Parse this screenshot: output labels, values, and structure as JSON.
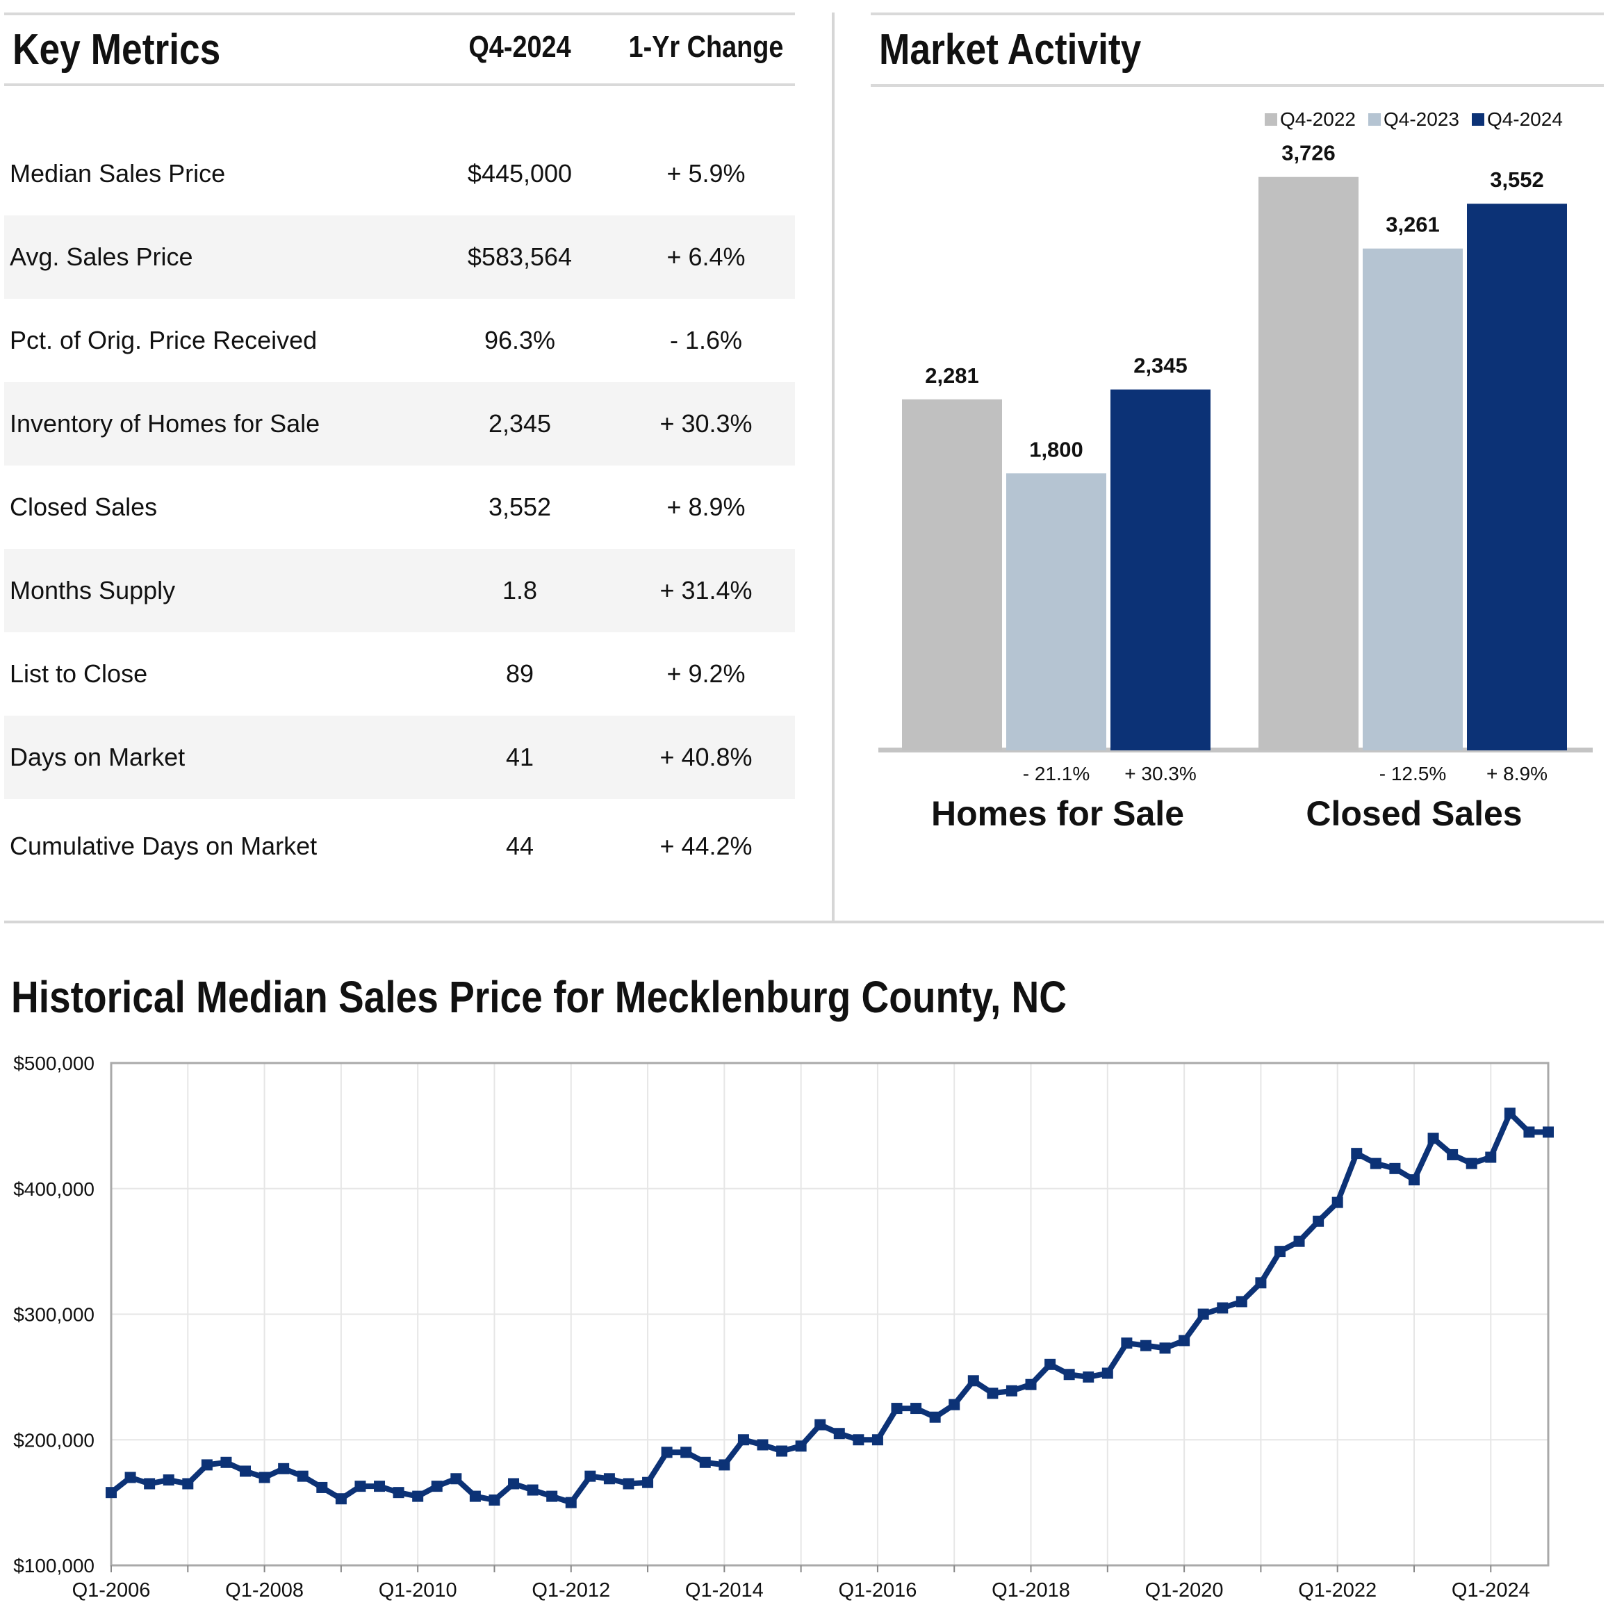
{
  "key_metrics": {
    "title": "Key Metrics",
    "col_period": "Q4-2024",
    "col_change": "1-Yr Change",
    "rows": [
      {
        "label": "Median Sales Price",
        "value": "$445,000",
        "change": "+ 5.9%"
      },
      {
        "label": "Avg. Sales Price",
        "value": "$583,564",
        "change": "+ 6.4%"
      },
      {
        "label": "Pct. of Orig. Price Received",
        "value": "96.3%",
        "change": "- 1.6%"
      },
      {
        "label": "Inventory of Homes for Sale",
        "value": "2,345",
        "change": "+ 30.3%"
      },
      {
        "label": "Closed Sales",
        "value": "3,552",
        "change": "+ 8.9%"
      },
      {
        "label": "Months Supply",
        "value": "1.8",
        "change": "+ 31.4%"
      },
      {
        "label": "List to Close",
        "value": "89",
        "change": "+ 9.2%"
      },
      {
        "label": "Days on Market",
        "value": "41",
        "change": "+ 40.8%"
      },
      {
        "label": "Cumulative Days on Market",
        "value": "44",
        "change": "+ 44.2%"
      }
    ]
  },
  "market_activity": {
    "title": "Market Activity"
  },
  "historical": {
    "title": "Historical Median Sales Price for Mecklenburg County, NC"
  },
  "colors": {
    "q4_2022": "#c0c0c0",
    "q4_2023": "#b5c4d2",
    "q4_2024": "#0c3276",
    "line": "#0c3276"
  },
  "chart_data": [
    {
      "type": "bar",
      "title": "Market Activity",
      "categories": [
        "Homes for Sale",
        "Closed Sales"
      ],
      "series": [
        {
          "name": "Q4-2022",
          "values": [
            2281,
            3726
          ],
          "labels": [
            "2,281",
            "3,726"
          ]
        },
        {
          "name": "Q4-2023",
          "values": [
            1800,
            3261
          ],
          "labels": [
            "1,800",
            "3,261"
          ]
        },
        {
          "name": "Q4-2024",
          "values": [
            2345,
            3552
          ],
          "labels": [
            "2,345",
            "3,552"
          ]
        }
      ],
      "changes": [
        {
          "vs_2022": "- 21.1%",
          "vs_2023": "+ 30.3%"
        },
        {
          "vs_2022": "- 12.5%",
          "vs_2023": "+ 8.9%"
        }
      ],
      "legend": "top-right",
      "ylim": [
        0,
        3800
      ]
    },
    {
      "type": "line",
      "title": "Historical Median Sales Price for Mecklenburg County, NC",
      "xlabel": "",
      "ylabel": "",
      "ylim": [
        100000,
        500000
      ],
      "yticks": [
        100000,
        200000,
        300000,
        400000,
        500000
      ],
      "ytick_labels": [
        "$100,000",
        "$200,000",
        "$300,000",
        "$400,000",
        "$500,000"
      ],
      "xtick_labels": [
        "Q1-2006",
        "Q1-2008",
        "Q1-2010",
        "Q1-2012",
        "Q1-2014",
        "Q1-2016",
        "Q1-2018",
        "Q1-2020",
        "Q1-2022",
        "Q1-2024"
      ],
      "start": "Q1-2006",
      "series": [
        {
          "name": "Median Sales Price",
          "values": [
            158000,
            170000,
            165000,
            168000,
            165000,
            180000,
            182000,
            175000,
            170000,
            177000,
            171000,
            162000,
            153000,
            163000,
            163000,
            158000,
            155000,
            163000,
            169000,
            155000,
            152000,
            165000,
            160000,
            155000,
            150000,
            171000,
            169000,
            165000,
            166000,
            190000,
            190000,
            182000,
            180000,
            200000,
            196000,
            191000,
            195000,
            212000,
            205000,
            200000,
            200000,
            225000,
            225000,
            218000,
            228000,
            247000,
            237000,
            239000,
            244000,
            260000,
            252000,
            250000,
            253000,
            277000,
            275000,
            273000,
            279000,
            300000,
            305000,
            310000,
            325000,
            350000,
            358000,
            374000,
            389000,
            428000,
            420000,
            416000,
            407000,
            440000,
            427000,
            420000,
            425000,
            460000,
            445000,
            445000
          ]
        }
      ]
    }
  ]
}
